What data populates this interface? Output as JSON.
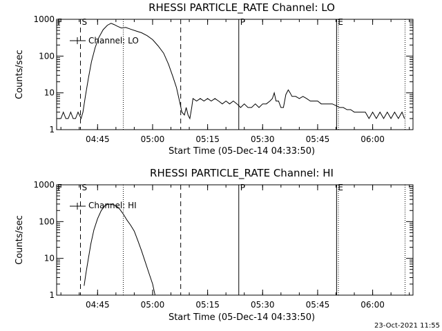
{
  "stamp": "23-Oct-2021 11:55",
  "chart_data": [
    {
      "type": "line",
      "title": "RHESSI PARTICLE_RATE Channel: LO",
      "xlabel": "Start Time (05-Dec-14 04:33:50)",
      "ylabel": "Counts/sec",
      "yscale": "log",
      "ylim": [
        1,
        1000
      ],
      "xlim": [
        "04:33:50",
        "06:11:00"
      ],
      "ytick_labels": [
        "1",
        "10",
        "100",
        "1000"
      ],
      "xtick_labels": [
        "04:45",
        "05:00",
        "05:15",
        "05:30",
        "05:45",
        "06:00"
      ],
      "legend": "Channel: LO",
      "event_labels": [
        "S",
        "P",
        "E"
      ],
      "markers_dashed": [
        "04:40:20",
        "05:07:40"
      ],
      "markers_dotted": [
        "04:52:00",
        "05:50:40",
        "06:08:50"
      ],
      "markers_solid": [
        "05:23:30",
        "05:50:10"
      ],
      "series": [
        {
          "name": "Channel: LO",
          "x": [
            "04:34:20",
            "04:35:00",
            "04:35:40",
            "04:36:20",
            "04:37:00",
            "04:37:40",
            "04:38:20",
            "04:39:00",
            "04:39:40",
            "04:40:30",
            "04:41:00",
            "04:41:40",
            "04:42:30",
            "04:43:20",
            "04:44:20",
            "04:45:20",
            "04:46:30",
            "04:47:40",
            "04:48:40",
            "04:49:30",
            "04:50:30",
            "04:51:30",
            "04:52:40",
            "04:54:00",
            "04:55:30",
            "04:57:00",
            "04:58:30",
            "05:00:00",
            "05:01:30",
            "05:03:00",
            "05:04:20",
            "05:05:30",
            "05:06:30",
            "05:07:20",
            "05:08:00",
            "05:08:40",
            "05:09:10",
            "05:09:40",
            "05:10:10",
            "05:10:40",
            "05:11:00",
            "05:12:00",
            "05:13:00",
            "05:14:00",
            "05:15:00",
            "05:16:00",
            "05:17:00",
            "05:18:00",
            "05:19:00",
            "05:20:00",
            "05:21:00",
            "05:22:00",
            "05:23:00",
            "05:24:00",
            "05:25:00",
            "05:26:00",
            "05:27:00",
            "05:28:00",
            "05:29:00",
            "05:30:00",
            "05:31:00",
            "05:32:00",
            "05:32:40",
            "05:33:10",
            "05:33:40",
            "05:34:20",
            "05:35:00",
            "05:35:40",
            "05:36:20",
            "05:37:00",
            "05:37:30",
            "05:38:00",
            "05:39:00",
            "05:40:00",
            "05:41:00",
            "05:42:00",
            "05:43:00",
            "05:44:00",
            "05:45:00",
            "05:46:00",
            "05:47:00",
            "05:48:00",
            "05:49:00",
            "05:50:00",
            "05:51:00",
            "05:52:00",
            "05:53:00",
            "05:54:00",
            "05:55:00",
            "05:56:00",
            "05:57:00",
            "05:58:00",
            "05:59:00",
            "06:00:00",
            "06:01:00",
            "06:02:00",
            "06:03:00",
            "06:04:00",
            "06:05:00",
            "06:06:00",
            "06:07:00",
            "06:08:00",
            "06:08:40"
          ],
          "y": [
            2,
            2,
            3,
            2,
            2,
            3,
            2,
            2,
            3,
            2,
            3,
            8,
            25,
            70,
            170,
            320,
            520,
            690,
            780,
            720,
            640,
            580,
            600,
            540,
            480,
            430,
            360,
            280,
            190,
            120,
            60,
            28,
            14,
            6,
            3,
            2.5,
            4,
            2.5,
            2,
            4,
            7,
            6,
            7,
            6,
            7,
            6,
            7,
            6,
            5,
            6,
            5,
            6,
            5,
            4,
            5,
            4,
            4,
            5,
            4,
            5,
            5,
            6,
            7,
            10,
            6,
            6,
            4,
            4,
            9,
            12,
            10,
            8,
            8,
            7,
            8,
            7,
            6,
            6,
            6,
            5,
            5,
            5,
            5,
            4.5,
            4,
            4,
            3.5,
            3.5,
            3,
            3,
            3,
            3,
            2,
            3,
            2,
            3,
            2,
            3,
            2,
            3,
            2,
            3,
            2
          ]
        }
      ]
    },
    {
      "type": "line",
      "title": "RHESSI PARTICLE_RATE Channel: HI",
      "xlabel": "Start Time (05-Dec-14 04:33:50)",
      "ylabel": "Counts/sec",
      "yscale": "log",
      "ylim": [
        1,
        1000
      ],
      "xlim": [
        "04:33:50",
        "06:11:00"
      ],
      "ytick_labels": [
        "1",
        "10",
        "100",
        "1000"
      ],
      "xtick_labels": [
        "04:45",
        "05:00",
        "05:15",
        "05:30",
        "05:45",
        "06:00"
      ],
      "legend": "Channel: HI",
      "event_labels": [
        "S",
        "P",
        "E"
      ],
      "markers_dashed": [
        "04:40:20",
        "05:07:40"
      ],
      "markers_dotted": [
        "04:52:00",
        "05:50:40",
        "06:08:50"
      ],
      "markers_solid": [
        "05:23:30",
        "05:50:10"
      ],
      "series": [
        {
          "name": "Channel: HI",
          "x": [
            "04:41:20",
            "04:41:50",
            "04:42:30",
            "04:43:10",
            "04:44:00",
            "04:45:00",
            "04:46:00",
            "04:47:00",
            "04:48:00",
            "04:49:00",
            "04:50:00",
            "04:51:00",
            "04:52:00",
            "04:53:00",
            "04:54:00",
            "04:55:00",
            "04:56:00",
            "04:57:00",
            "04:58:00",
            "04:59:00",
            "05:00:00",
            "05:00:40"
          ],
          "y": [
            1.8,
            4,
            10,
            25,
            60,
            120,
            200,
            270,
            300,
            290,
            270,
            220,
            160,
            110,
            80,
            55,
            30,
            16,
            8,
            4,
            2,
            1
          ]
        }
      ]
    }
  ]
}
